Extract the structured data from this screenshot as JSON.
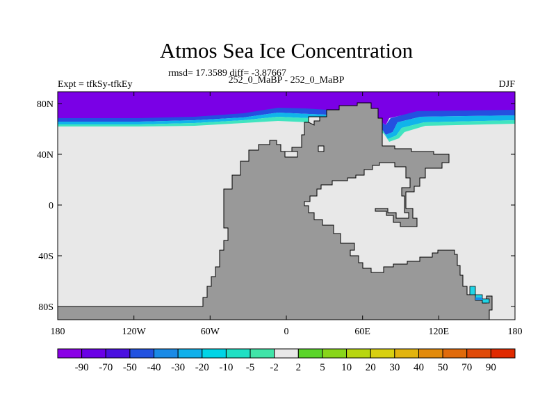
{
  "title": "Atmos Sea Ice Concentration",
  "stats": "rmsd= 17.3589 diff= -3.87667",
  "left_label": "Expt = tfkSy-tfkEy",
  "center_label": "252_0_MaBP - 252_0_MaBP",
  "right_label": "DJF",
  "lat_ticks": [
    "80N",
    "40N",
    "0",
    "40S",
    "80S"
  ],
  "lon_ticks": [
    "180",
    "120W",
    "60W",
    "0",
    "60E",
    "120E",
    "180"
  ],
  "colorbar": {
    "labels": [
      "-90",
      "-70",
      "-50",
      "-40",
      "-30",
      "-20",
      "-10",
      "-5",
      "-2",
      "2",
      "5",
      "10",
      "20",
      "30",
      "40",
      "50",
      "70",
      "90"
    ],
    "colors": [
      "#8a00e6",
      "#6a00e6",
      "#4a10e0",
      "#2252e0",
      "#1a8ae6",
      "#10b0ea",
      "#00d4e6",
      "#20e0c4",
      "#40e4a8",
      "#e8e8e8",
      "#5ad42a",
      "#88d61a",
      "#b8d610",
      "#d8d010",
      "#e2b40e",
      "#e28a0a",
      "#e06a0a",
      "#e04a08",
      "#e02a00"
    ]
  },
  "colors": {
    "land": "#999999",
    "ocean": "#e8e8e8",
    "ice_deep": "#7a00e6"
  }
}
